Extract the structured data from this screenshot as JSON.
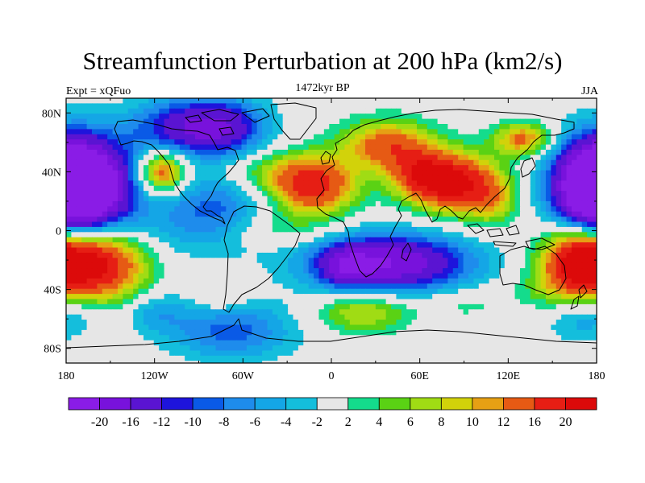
{
  "title": "Streamfunction Perturbation at 200 hPa (km2/s)",
  "left_label": "Expt = xQFuo",
  "center_label": "1472kyr BP",
  "right_label": "JJA",
  "lat_ticks": [
    "80N",
    "40N",
    "0",
    "40S",
    "80S"
  ],
  "lon_ticks": [
    "180",
    "120W",
    "60W",
    "0",
    "60E",
    "120E",
    "180"
  ],
  "colorbar": {
    "colors": [
      "#8a1ce6",
      "#7812dc",
      "#5a14d2",
      "#1e14dc",
      "#0a5ae6",
      "#1e8cec",
      "#14a6e6",
      "#14bedc",
      "#e6e6e6",
      "#14dc8c",
      "#5ad214",
      "#a0dc14",
      "#d2d20a",
      "#e6a014",
      "#e65a14",
      "#e61e14",
      "#dc0a0a"
    ],
    "labels": [
      "-20",
      "-16",
      "-12",
      "-10",
      "-8",
      "-6",
      "-4",
      "-2",
      "2",
      "4",
      "6",
      "8",
      "10",
      "12",
      "16",
      "20"
    ]
  },
  "field_blobs": [
    {
      "lon": -168,
      "lat": 30,
      "sx": 24,
      "sy": 22,
      "amp": -24
    },
    {
      "lon": 180,
      "lat": 30,
      "sx": 20,
      "sy": 22,
      "amp": -22
    },
    {
      "lon": 163,
      "lat": -60,
      "sx": 14,
      "sy": 12,
      "amp": -4
    },
    {
      "lon": -100,
      "lat": 70,
      "sx": 26,
      "sy": 14,
      "amp": -13
    },
    {
      "lon": -70,
      "lat": 70,
      "sx": 20,
      "sy": 14,
      "amp": -10
    },
    {
      "lon": -115,
      "lat": 40,
      "sx": 11,
      "sy": 10,
      "amp": 16
    },
    {
      "lon": -78,
      "lat": 20,
      "sx": 22,
      "sy": 14,
      "amp": -6
    },
    {
      "lon": -100,
      "lat": 2,
      "sx": 40,
      "sy": 16,
      "amp": -5
    },
    {
      "lon": -160,
      "lat": -22,
      "sx": 24,
      "sy": 18,
      "amp": 22
    },
    {
      "lon": -175,
      "lat": -55,
      "sx": 14,
      "sy": 12,
      "amp": -5
    },
    {
      "lon": -120,
      "lat": -55,
      "sx": 15,
      "sy": 10,
      "amp": -5
    },
    {
      "lon": -68,
      "lat": -68,
      "sx": 30,
      "sy": 14,
      "amp": -9
    },
    {
      "lon": -75,
      "lat": -45,
      "sx": 12,
      "sy": 8,
      "amp": 4
    },
    {
      "lon": -40,
      "lat": 40,
      "sx": 24,
      "sy": 10,
      "amp": 5
    },
    {
      "lon": -12,
      "lat": 30,
      "sx": 20,
      "sy": 14,
      "amp": 18
    },
    {
      "lon": 38,
      "lat": 58,
      "sx": 22,
      "sy": 12,
      "amp": 14
    },
    {
      "lon": 60,
      "lat": 38,
      "sx": 16,
      "sy": 12,
      "amp": 12
    },
    {
      "lon": 85,
      "lat": 32,
      "sx": 20,
      "sy": 14,
      "amp": 20
    },
    {
      "lon": 110,
      "lat": 20,
      "sx": 12,
      "sy": 12,
      "amp": 7
    },
    {
      "lon": 130,
      "lat": 62,
      "sx": 14,
      "sy": 8,
      "amp": 13
    },
    {
      "lon": -35,
      "lat": 0,
      "sx": 24,
      "sy": 8,
      "amp": 4
    },
    {
      "lon": 40,
      "lat": -22,
      "sx": 38,
      "sy": 14,
      "amp": -20
    },
    {
      "lon": 10,
      "lat": -25,
      "sx": 12,
      "sy": 10,
      "amp": -8
    },
    {
      "lon": 22,
      "lat": -55,
      "sx": 22,
      "sy": 10,
      "amp": 9
    },
    {
      "lon": 90,
      "lat": -50,
      "sx": 20,
      "sy": 8,
      "amp": 3
    },
    {
      "lon": 168,
      "lat": -20,
      "sx": 18,
      "sy": 16,
      "amp": 20
    },
    {
      "lon": 150,
      "lat": -40,
      "sx": 20,
      "sy": 10,
      "amp": 4
    }
  ]
}
